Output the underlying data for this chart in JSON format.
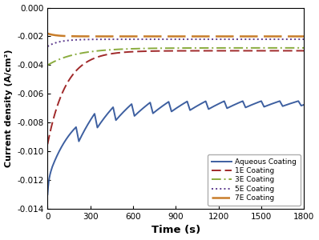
{
  "title": "",
  "xlabel": "Time (s)",
  "ylabel": "Current density (A/cm²)",
  "xlim": [
    0,
    1800
  ],
  "ylim": [
    -0.014,
    0.0
  ],
  "yticks": [
    0.0,
    -0.002,
    -0.004,
    -0.006,
    -0.008,
    -0.01,
    -0.012,
    -0.014
  ],
  "xticks": [
    0,
    300,
    600,
    900,
    1200,
    1500,
    1800
  ],
  "legend_labels": [
    "Aqueous Coating",
    "1E Coating",
    "3E Coating",
    "5E Coating",
    "7E Coating"
  ],
  "colors": {
    "aqueous": "#3D5FA0",
    "1E": "#A0292A",
    "3E": "#8AAC3E",
    "5E": "#5C3A8E",
    "7E": "#C87D2A"
  },
  "background": "#FFFFFF",
  "curve_aqueous_start": -0.0122,
  "curve_aqueous_dip": -0.013,
  "curve_aqueous_end": -0.0065,
  "curve_1e_start": -0.0095,
  "curve_1e_end": -0.003,
  "curve_3e_start": -0.004,
  "curve_3e_end": -0.0028,
  "curve_5e_start": -0.0027,
  "curve_5e_end": -0.0022,
  "curve_7e_start": -0.0018,
  "curve_7e_end": -0.002
}
